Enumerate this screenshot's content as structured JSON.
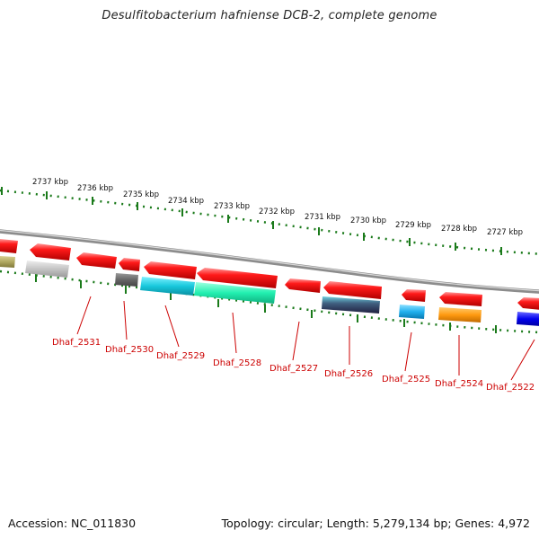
{
  "title": "Desulfitobacterium hafniense DCB-2, complete genome",
  "footer": {
    "accession": "Accession: NC_011830",
    "summary": "Topology: circular; Length: 5,279,134 bp; Genes: 4,972"
  },
  "kbp_labels": [
    "2737 kbp",
    "2736 kbp",
    "2735 kbp",
    "2734 kbp",
    "2733 kbp",
    "2732 kbp",
    "2731 kbp",
    "2730 kbp",
    "2729 kbp",
    "2728 kbp",
    "2727 kbp"
  ],
  "colors": {
    "backbone": "#9a9a9a",
    "tick": "#1a7a1a",
    "gene_label": "#cc0000",
    "forward_gene": "#ee1111"
  },
  "gene_labels": [
    "Dhaf_2531",
    "Dhaf_2530",
    "Dhaf_2529",
    "Dhaf_2528",
    "Dhaf_2527",
    "Dhaf_2526",
    "Dhaf_2525",
    "Dhaf_2524",
    "Dhaf_2522"
  ]
}
